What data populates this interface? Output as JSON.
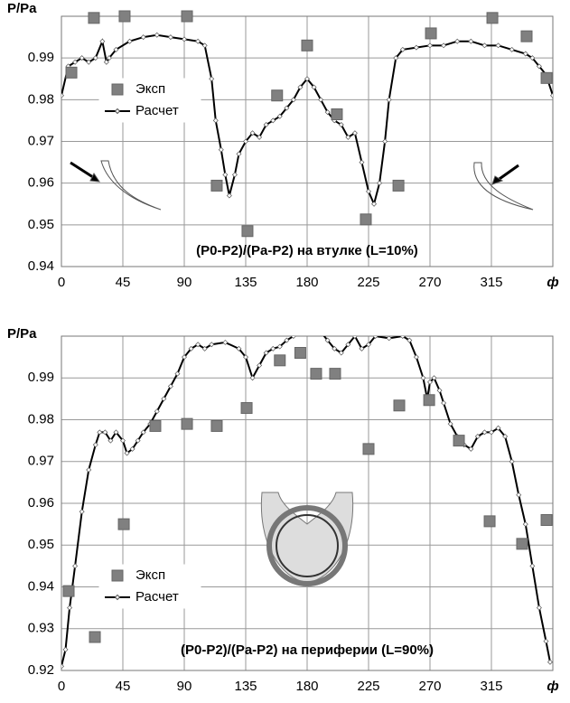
{
  "chart_data": [
    {
      "type": "line",
      "y_label": "P/Pa",
      "x_label": "ф",
      "annotation": "(P0-P2)/(Pa-P2) на втулке (L=10%)",
      "xlim": [
        0,
        360
      ],
      "xticks": [
        0,
        45,
        90,
        135,
        180,
        225,
        270,
        315
      ],
      "ylim": [
        0.94,
        1.0
      ],
      "yticks": [
        0.94,
        0.95,
        0.96,
        0.97,
        0.98,
        0.99
      ],
      "grid": true,
      "legend": "upper left",
      "series": [
        {
          "name": "Эксп",
          "type": "scatter",
          "color": "#808080",
          "x": [
            7.3,
            23.8,
            46.3,
            92,
            113.8,
            136.3,
            158,
            180,
            201.8,
            223,
            246.9,
            270.7,
            315.7,
            340.8,
            355.4
          ],
          "values": [
            0.9865,
            0.9996,
            1.0,
            1.0,
            0.9594,
            0.9485,
            0.981,
            0.993,
            0.9765,
            0.9513,
            0.9594,
            0.9959,
            0.9996,
            0.9952,
            0.9852
          ]
        },
        {
          "name": "Расчет",
          "type": "line",
          "color": "#000000",
          "x": [
            0,
            5,
            10,
            15,
            20,
            25,
            30,
            33,
            35,
            40,
            50,
            60,
            70,
            80,
            90,
            100,
            105,
            110,
            113,
            117,
            120,
            123,
            127,
            130,
            135,
            140,
            145,
            150,
            155,
            160,
            165,
            170,
            175,
            180,
            185,
            190,
            195,
            200,
            205,
            210,
            215,
            220,
            225,
            229,
            233,
            237,
            240,
            245,
            250,
            260,
            270,
            280,
            290,
            300,
            310,
            320,
            330,
            340,
            345,
            350,
            355,
            360
          ],
          "values": [
            0.981,
            0.988,
            0.989,
            0.99,
            0.989,
            0.99,
            0.994,
            0.989,
            0.99,
            0.992,
            0.994,
            0.995,
            0.9955,
            0.995,
            0.9945,
            0.994,
            0.993,
            0.985,
            0.975,
            0.968,
            0.962,
            0.957,
            0.962,
            0.967,
            0.97,
            0.972,
            0.971,
            0.974,
            0.975,
            0.976,
            0.978,
            0.98,
            0.983,
            0.985,
            0.983,
            0.98,
            0.977,
            0.975,
            0.974,
            0.971,
            0.972,
            0.965,
            0.958,
            0.955,
            0.96,
            0.97,
            0.98,
            0.99,
            0.992,
            0.9925,
            0.993,
            0.993,
            0.994,
            0.994,
            0.993,
            0.993,
            0.992,
            0.991,
            0.99,
            0.988,
            0.986,
            0.981
          ]
        }
      ]
    },
    {
      "type": "line",
      "y_label": "P/Pa",
      "x_label": "ф",
      "annotation": "(P0-P2)/(Pa-P2) на периферии (L=90%)",
      "xlim": [
        0,
        360
      ],
      "xticks": [
        0,
        45,
        90,
        135,
        180,
        225,
        270,
        315
      ],
      "ylim": [
        0.92,
        1.0
      ],
      "yticks": [
        0.92,
        0.93,
        0.94,
        0.95,
        0.96,
        0.97,
        0.98,
        0.99
      ],
      "grid": true,
      "legend": "lower left",
      "series": [
        {
          "name": "Эксп",
          "type": "scatter",
          "color": "#808080",
          "x": [
            5.3,
            24.5,
            45.7,
            68.8,
            92,
            113.8,
            135.7,
            160,
            175,
            186.6,
            200.5,
            225,
            247.5,
            269.4,
            291.2,
            313.7,
            337.5,
            355.4
          ],
          "values": [
            0.939,
            0.928,
            0.955,
            0.9785,
            0.979,
            0.9785,
            0.9828,
            0.9942,
            0.996,
            0.991,
            0.991,
            0.973,
            0.9834,
            0.9847,
            0.975,
            0.9557,
            0.9503,
            0.956
          ]
        },
        {
          "name": "Расчет",
          "type": "line",
          "color": "#000000",
          "x": [
            0,
            3,
            6,
            10,
            15,
            20,
            25,
            28,
            32,
            36,
            40,
            45,
            48,
            52,
            56,
            60,
            65,
            70,
            75,
            80,
            85,
            90,
            95,
            100,
            105,
            110,
            120,
            130,
            135,
            140,
            145,
            150,
            155,
            160,
            165,
            170,
            175,
            180,
            185,
            190,
            195,
            200,
            205,
            210,
            215,
            220,
            225,
            230,
            240,
            250,
            255,
            260,
            265,
            268,
            270,
            273,
            277,
            280,
            285,
            290,
            295,
            300,
            305,
            310,
            315,
            320,
            325,
            330,
            335,
            340,
            345,
            350,
            355,
            358
          ],
          "values": [
            0.921,
            0.925,
            0.935,
            0.945,
            0.958,
            0.968,
            0.974,
            0.977,
            0.977,
            0.975,
            0.977,
            0.975,
            0.972,
            0.973,
            0.975,
            0.977,
            0.979,
            0.982,
            0.985,
            0.988,
            0.991,
            0.995,
            0.997,
            0.998,
            0.997,
            0.998,
            0.9985,
            0.997,
            0.995,
            0.99,
            0.993,
            0.996,
            0.997,
            0.9975,
            0.999,
            1.0,
            1.002,
            1.004,
            1.003,
            1.001,
            0.999,
            0.997,
            0.996,
            0.998,
            1.0,
            0.997,
            0.998,
            1.0,
            0.9995,
            1.0,
            0.999,
            0.995,
            0.99,
            0.985,
            0.989,
            0.99,
            0.987,
            0.984,
            0.979,
            0.976,
            0.974,
            0.973,
            0.976,
            0.977,
            0.977,
            0.978,
            0.976,
            0.97,
            0.962,
            0.955,
            0.945,
            0.935,
            0.927,
            0.922
          ]
        }
      ]
    }
  ]
}
